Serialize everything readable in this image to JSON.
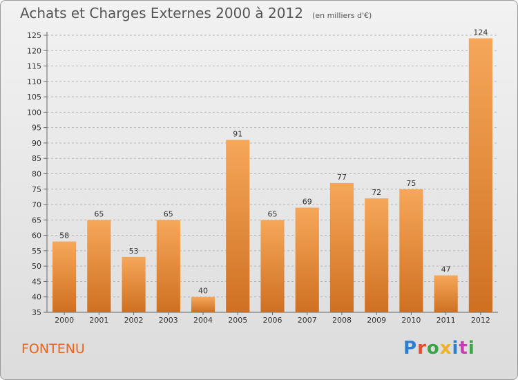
{
  "header": {
    "title": "Achats et Charges Externes 2000 à 2012",
    "unit": "(en milliers d'€)"
  },
  "footer": {
    "place": "FONTENU",
    "brand": "Proxiti",
    "brand_colors": [
      "#2a7fd0",
      "#e2502a",
      "#3aa547",
      "#f0b21e",
      "#2a7fd0",
      "#c93cb8",
      "#3aa547"
    ]
  },
  "colors": {
    "bar_light": "#f6a75a",
    "bar_dark": "#cf7021",
    "place_text": "#e8641c"
  },
  "chart_data": {
    "type": "bar",
    "title": "Achats et Charges Externes 2000 à 2012",
    "subtitle": "(en milliers d'€)",
    "xlabel": "",
    "ylabel": "",
    "categories": [
      "2000",
      "2001",
      "2002",
      "2003",
      "2004",
      "2005",
      "2006",
      "2007",
      "2008",
      "2009",
      "2010",
      "2011",
      "2012"
    ],
    "values": [
      58,
      65,
      53,
      65,
      40,
      91,
      65,
      69,
      77,
      72,
      75,
      47,
      124
    ],
    "value_labels": [
      "58",
      "65",
      "53",
      "65",
      "40",
      "91",
      "65",
      "69",
      "77",
      "72",
      "75",
      "47",
      "124"
    ],
    "ylim": [
      35,
      125
    ],
    "yticks": [
      35,
      40,
      45,
      50,
      55,
      60,
      65,
      70,
      75,
      80,
      85,
      90,
      95,
      100,
      105,
      110,
      115,
      120,
      125
    ],
    "grid": "horizontal dashed",
    "legend": "none"
  }
}
